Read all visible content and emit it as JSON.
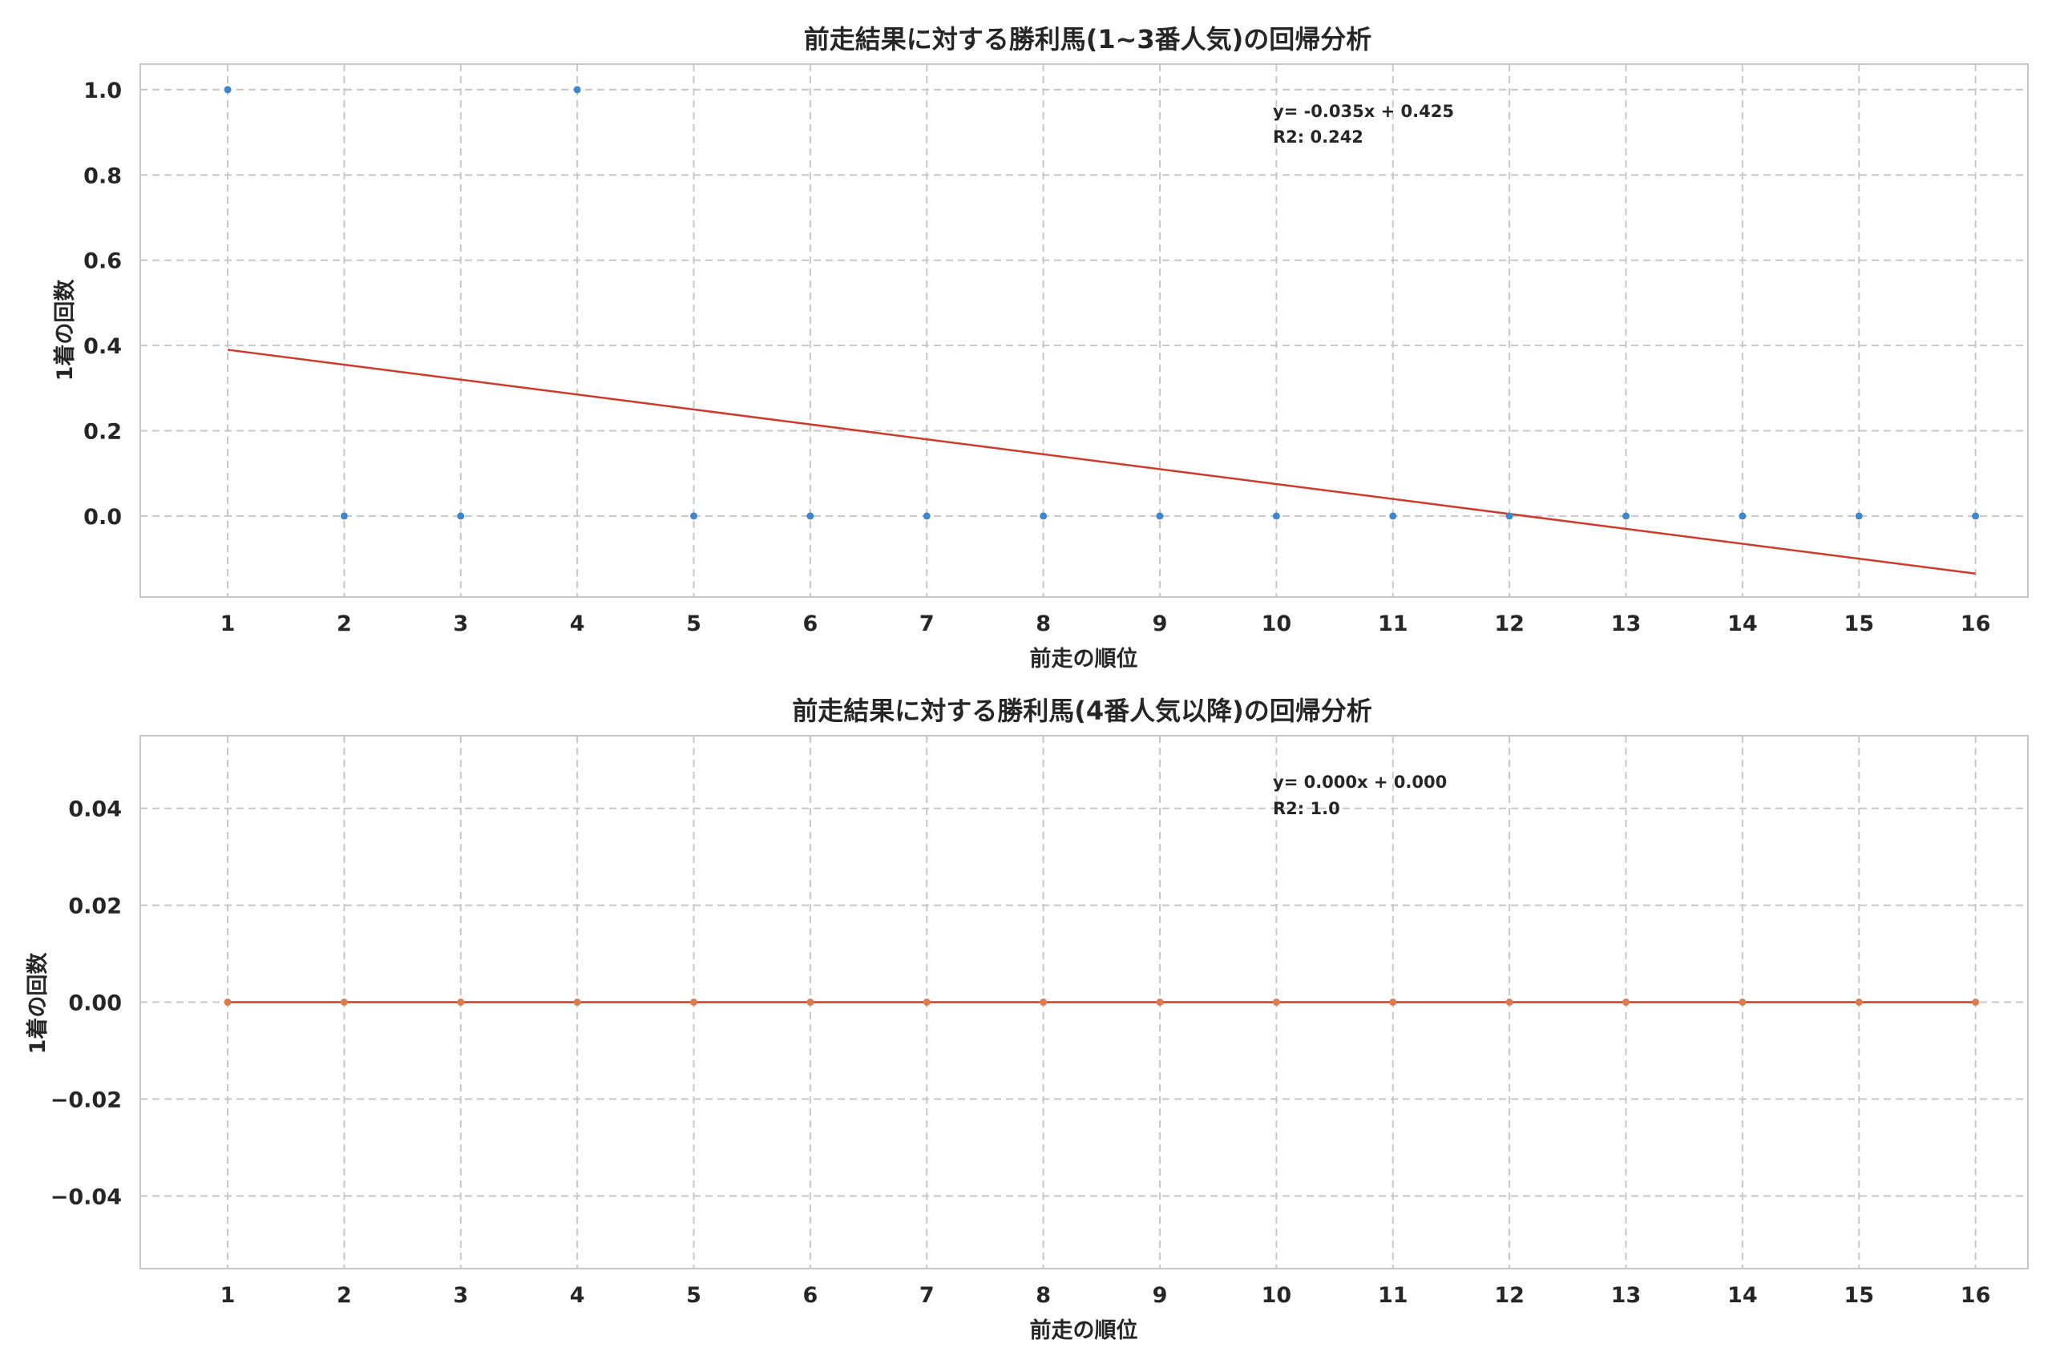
{
  "chart_data": [
    {
      "type": "scatter",
      "title": "前走結果に対する勝利馬(1~3番人気)の回帰分析",
      "xlabel": "前走の順位",
      "ylabel": "1着の回数",
      "x": [
        1,
        2,
        3,
        4,
        5,
        6,
        7,
        8,
        9,
        10,
        11,
        12,
        13,
        14,
        15,
        16
      ],
      "y": [
        1,
        0,
        0,
        1,
        0,
        0,
        0,
        0,
        0,
        0,
        0,
        0,
        0,
        0,
        0,
        0
      ],
      "xlim": [
        0.25,
        16.45
      ],
      "ylim": [
        -0.19,
        1.06
      ],
      "xticks": [
        "1",
        "2",
        "3",
        "4",
        "5",
        "6",
        "7",
        "8",
        "9",
        "10",
        "11",
        "12",
        "13",
        "14",
        "15",
        "16"
      ],
      "yticks": [
        {
          "value": 1.0,
          "label": "1.0"
        },
        {
          "value": 0.8,
          "label": "0.8"
        },
        {
          "value": 0.6,
          "label": "0.6"
        },
        {
          "value": 0.4,
          "label": "0.4"
        },
        {
          "value": 0.2,
          "label": "0.2"
        },
        {
          "value": 0.0,
          "label": "0.0"
        }
      ],
      "regression": {
        "slope": -0.035,
        "intercept": 0.425
      },
      "annotation": [
        "y= -0.035x + 0.425",
        "R2: 0.242"
      ],
      "point_color": "#3d87cf",
      "line_color": "#cf3a2a",
      "grid": true
    },
    {
      "type": "scatter",
      "title": "前走結果に対する勝利馬(4番人気以降)の回帰分析",
      "xlabel": "前走の順位",
      "ylabel": "1着の回数",
      "x": [
        1,
        2,
        3,
        4,
        5,
        6,
        7,
        8,
        9,
        10,
        11,
        12,
        13,
        14,
        15,
        16
      ],
      "y": [
        0,
        0,
        0,
        0,
        0,
        0,
        0,
        0,
        0,
        0,
        0,
        0,
        0,
        0,
        0,
        0
      ],
      "xlim": [
        0.25,
        16.45
      ],
      "ylim": [
        -0.055,
        0.055
      ],
      "xticks": [
        "1",
        "2",
        "3",
        "4",
        "5",
        "6",
        "7",
        "8",
        "9",
        "10",
        "11",
        "12",
        "13",
        "14",
        "15",
        "16"
      ],
      "yticks": [
        {
          "value": 0.04,
          "label": "0.04"
        },
        {
          "value": 0.02,
          "label": "0.02"
        },
        {
          "value": 0.0,
          "label": "0.00"
        },
        {
          "value": -0.02,
          "label": "−0.02"
        },
        {
          "value": -0.04,
          "label": "−0.04"
        }
      ],
      "regression": {
        "slope": 0.0,
        "intercept": 0.0
      },
      "annotation": [
        "y= 0.000x + 0.000",
        "R2: 1.0"
      ],
      "point_color": "#e07a4a",
      "line_color": "#cf3a2a",
      "grid": true
    }
  ]
}
